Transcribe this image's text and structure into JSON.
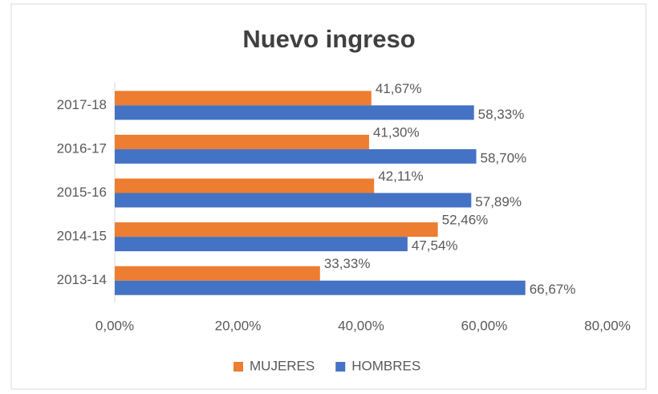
{
  "chart_data": {
    "type": "bar",
    "orientation": "horizontal",
    "title": "Nuevo ingreso",
    "categories": [
      "2017-18",
      "2016-17",
      "2015-16",
      "2014-15",
      "2013-14"
    ],
    "series": [
      {
        "name": "MUJERES",
        "color": "#ed7d31",
        "values": [
          41.67,
          41.3,
          42.11,
          52.46,
          33.33
        ],
        "value_labels": [
          "41,67%",
          "41,30%",
          "42,11%",
          "52,46%",
          "33,33%"
        ]
      },
      {
        "name": "HOMBRES",
        "color": "#4472c4",
        "values": [
          58.33,
          58.7,
          57.89,
          47.54,
          66.67
        ],
        "value_labels": [
          "58,33%",
          "58,70%",
          "57,89%",
          "47,54%",
          "66,67%"
        ]
      }
    ],
    "xlim": [
      0,
      80
    ],
    "xticks": [
      {
        "value": 0,
        "label": "0,00%"
      },
      {
        "value": 20,
        "label": "20,00%"
      },
      {
        "value": 40,
        "label": "40,00%"
      },
      {
        "value": 60,
        "label": "60,00%"
      },
      {
        "value": 80,
        "label": "80,00%"
      }
    ],
    "grid": false,
    "legend": "bottom"
  }
}
